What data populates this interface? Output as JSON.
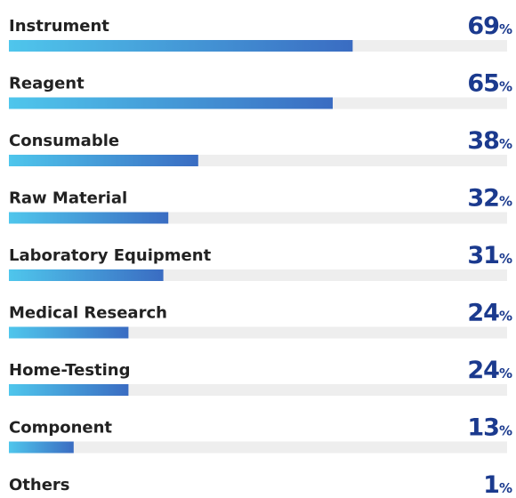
{
  "chart_data": {
    "type": "progress-bar",
    "categories": [
      "Instrument",
      "Reagent",
      "Consumable",
      "Raw Material",
      "Laboratory Equipment",
      "Medical Research",
      "Home-Testing",
      "Component",
      "Others"
    ],
    "values": [
      69,
      65,
      38,
      32,
      31,
      24,
      24,
      13,
      1
    ],
    "value_labels": [
      "69%",
      "65%",
      "38%",
      "32%",
      "31%",
      "24%",
      "24%",
      "13%",
      "1%"
    ],
    "xlim": [
      0,
      100
    ],
    "color": [
      "#4fc6ec",
      "#3a6cc2"
    ]
  }
}
